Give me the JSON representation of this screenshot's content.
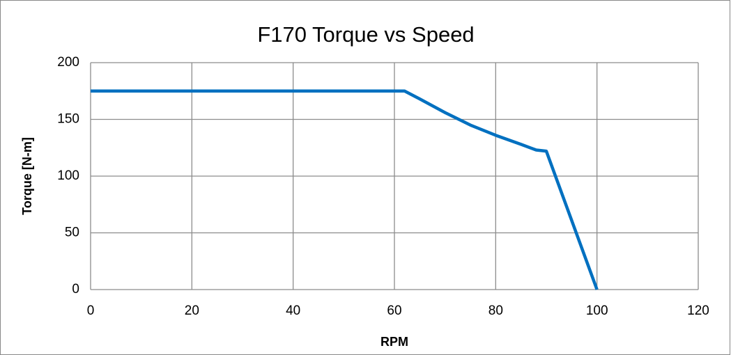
{
  "chart_data": {
    "type": "line",
    "title": "F170 Torque vs Speed",
    "x_label": "RPM",
    "y_label": "Torque [N-m]",
    "x": [
      0,
      62,
      65,
      70,
      75,
      80,
      85,
      88,
      90,
      100
    ],
    "series": [
      {
        "name": "Torque",
        "color": "#0070c0",
        "values": [
          175,
          175,
          168,
          156,
          145,
          136,
          128,
          123,
          122,
          0
        ]
      }
    ],
    "xlim": [
      0,
      120
    ],
    "xticks": [
      0,
      20,
      40,
      60,
      80,
      100,
      120
    ],
    "ylim": [
      0,
      200
    ],
    "yticks": [
      0,
      50,
      100,
      150,
      200
    ],
    "grid": true
  }
}
